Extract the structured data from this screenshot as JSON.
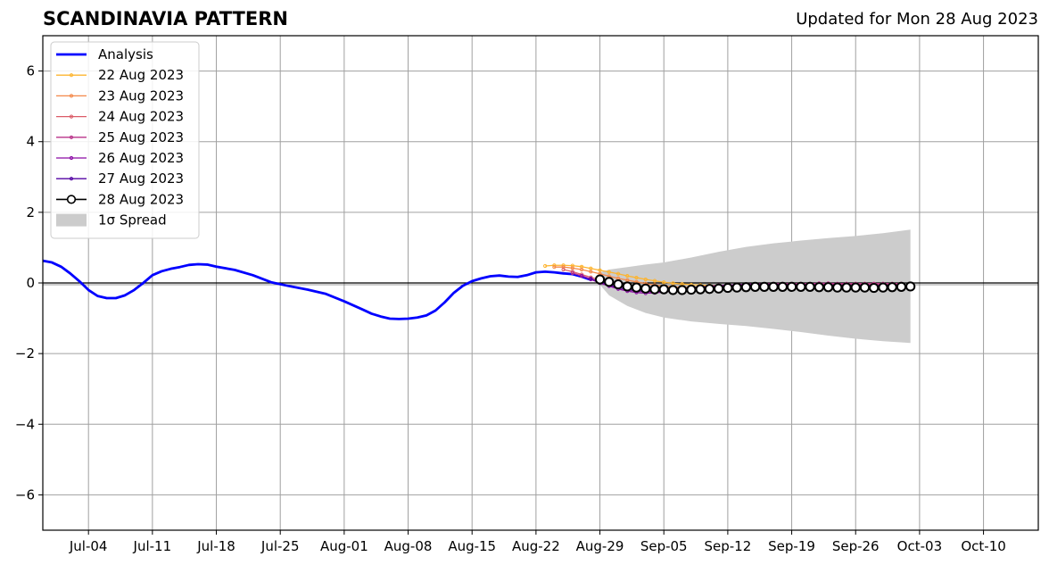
{
  "header": {
    "title": "SCANDINAVIA PATTERN",
    "updated": "Updated for Mon 28 Aug 2023"
  },
  "chart_data": {
    "type": "line",
    "title": "SCANDINAVIA PATTERN",
    "subtitle": "Updated for Mon 28 Aug 2023",
    "xlabel": "",
    "ylabel": "",
    "x_ticks": [
      "Jul-04",
      "Jul-11",
      "Jul-18",
      "Jul-25",
      "Aug-01",
      "Aug-08",
      "Aug-15",
      "Aug-22",
      "Aug-29",
      "Sep-05",
      "Sep-12",
      "Sep-19",
      "Sep-26",
      "Oct-03",
      "Oct-10"
    ],
    "y_ticks": [
      -6,
      -4,
      -2,
      0,
      2,
      4,
      6
    ],
    "y_tick_labels": [
      "−6",
      "−4",
      "−2",
      "0",
      "2",
      "4",
      "6"
    ],
    "xlim": [
      "2023-06-29",
      "2023-10-16"
    ],
    "ylim": [
      -7,
      7
    ],
    "grid": true,
    "legend_position": "top-left",
    "colors": {
      "analysis": "#0000ff",
      "spread": "#cccccc",
      "zero_line": "#000000"
    },
    "analysis": {
      "name": "Analysis",
      "dates": [
        "2023-06-29",
        "2023-06-30",
        "2023-07-01",
        "2023-07-02",
        "2023-07-03",
        "2023-07-04",
        "2023-07-05",
        "2023-07-06",
        "2023-07-07",
        "2023-07-08",
        "2023-07-09",
        "2023-07-10",
        "2023-07-11",
        "2023-07-12",
        "2023-07-13",
        "2023-07-14",
        "2023-07-15",
        "2023-07-16",
        "2023-07-17",
        "2023-07-18",
        "2023-07-20",
        "2023-07-22",
        "2023-07-24",
        "2023-07-26",
        "2023-07-28",
        "2023-07-30",
        "2023-08-01",
        "2023-08-03",
        "2023-08-04",
        "2023-08-05",
        "2023-08-06",
        "2023-08-07",
        "2023-08-08",
        "2023-08-09",
        "2023-08-10",
        "2023-08-11",
        "2023-08-12",
        "2023-08-13",
        "2023-08-14",
        "2023-08-15",
        "2023-08-16",
        "2023-08-17",
        "2023-08-18",
        "2023-08-19",
        "2023-08-20",
        "2023-08-21",
        "2023-08-22",
        "2023-08-23",
        "2023-08-24",
        "2023-08-25",
        "2023-08-26",
        "2023-08-27",
        "2023-08-28"
      ],
      "values": [
        0.63,
        0.58,
        0.46,
        0.27,
        0.05,
        -0.2,
        -0.37,
        -0.43,
        -0.43,
        -0.35,
        -0.2,
        0.0,
        0.22,
        0.33,
        0.4,
        0.45,
        0.51,
        0.53,
        0.52,
        0.46,
        0.37,
        0.22,
        0.02,
        -0.09,
        -0.19,
        -0.31,
        -0.52,
        -0.75,
        -0.87,
        -0.95,
        -1.01,
        -1.02,
        -1.01,
        -0.98,
        -0.92,
        -0.78,
        -0.55,
        -0.28,
        -0.08,
        0.05,
        0.13,
        0.19,
        0.21,
        0.18,
        0.17,
        0.22,
        0.3,
        0.32,
        0.3,
        0.27,
        0.25,
        0.18,
        0.09
      ]
    },
    "series": [
      {
        "name": "22 Aug 2023",
        "color": "#fdb42f",
        "start": "2023-08-23",
        "values": [
          0.48,
          0.5,
          0.5,
          0.49,
          0.46,
          0.41,
          0.36,
          0.31,
          0.26,
          0.2,
          0.15,
          0.1,
          0.06,
          0.02,
          -0.01,
          -0.03,
          -0.05,
          -0.06,
          -0.07,
          -0.08,
          -0.08,
          -0.08,
          -0.08,
          -0.07,
          -0.07,
          -0.06,
          -0.06,
          -0.05,
          -0.05,
          -0.05,
          -0.05,
          -0.05,
          -0.05,
          -0.05,
          -0.04,
          -0.04,
          -0.04,
          -0.04,
          -0.04,
          -0.04
        ]
      },
      {
        "name": "23 Aug 2023",
        "color": "#f48849",
        "start": "2023-08-24",
        "values": [
          0.45,
          0.45,
          0.42,
          0.38,
          0.32,
          0.26,
          0.19,
          0.13,
          0.08,
          0.03,
          -0.02,
          -0.06,
          -0.09,
          -0.11,
          -0.12,
          -0.12,
          -0.12,
          -0.11,
          -0.1,
          -0.09,
          -0.08,
          -0.07,
          -0.06,
          -0.05,
          -0.05,
          -0.04,
          -0.04,
          -0.04,
          -0.03,
          -0.03,
          -0.03,
          -0.03,
          -0.03,
          -0.03,
          -0.03,
          -0.03,
          -0.03,
          -0.03,
          -0.03
        ]
      },
      {
        "name": "24 Aug 2023",
        "color": "#db5c68",
        "start": "2023-08-25",
        "values": [
          0.38,
          0.32,
          0.24,
          0.16,
          0.08,
          0.01,
          -0.06,
          -0.12,
          -0.16,
          -0.18,
          -0.19,
          -0.19,
          -0.18,
          -0.16,
          -0.14,
          -0.12,
          -0.1,
          -0.09,
          -0.08,
          -0.07,
          -0.06,
          -0.05,
          -0.05,
          -0.04,
          -0.04,
          -0.04,
          -0.03,
          -0.03,
          -0.03,
          -0.03,
          -0.03,
          -0.02,
          -0.02,
          -0.02,
          -0.02,
          -0.02,
          -0.02,
          -0.02
        ]
      },
      {
        "name": "25 Aug 2023",
        "color": "#b83289",
        "start": "2023-08-26",
        "values": [
          0.28,
          0.2,
          0.11,
          0.02,
          -0.06,
          -0.13,
          -0.19,
          -0.23,
          -0.25,
          -0.25,
          -0.23,
          -0.2,
          -0.17,
          -0.14,
          -0.11,
          -0.09,
          -0.07,
          -0.06,
          -0.05,
          -0.04,
          -0.03,
          -0.03,
          -0.02,
          -0.02,
          -0.02,
          -0.02,
          -0.02,
          -0.01,
          -0.01,
          -0.02,
          -0.02,
          -0.02,
          -0.02,
          -0.02,
          -0.02,
          -0.02,
          -0.02
        ]
      },
      {
        "name": "26 Aug 2023",
        "color": "#8b0aa5",
        "start": "2023-08-27",
        "values": [
          0.2,
          0.1,
          0.0,
          -0.09,
          -0.17,
          -0.23,
          -0.27,
          -0.29,
          -0.28,
          -0.26,
          -0.22,
          -0.18,
          -0.15,
          -0.12,
          -0.1,
          -0.08,
          -0.06,
          -0.05,
          -0.04,
          -0.04,
          -0.04,
          -0.04,
          -0.04,
          -0.05,
          -0.05,
          -0.05,
          -0.05,
          -0.05,
          -0.06,
          -0.06,
          -0.06,
          -0.06,
          -0.06,
          -0.06,
          -0.06,
          -0.06
        ]
      },
      {
        "name": "27 Aug 2023",
        "color": "#5302a3",
        "start": "2023-08-28",
        "values": [
          0.12,
          0.03,
          -0.06,
          -0.13,
          -0.19,
          -0.22,
          -0.24,
          -0.24,
          -0.23,
          -0.21,
          -0.19,
          -0.17,
          -0.15,
          -0.14,
          -0.13,
          -0.12,
          -0.12,
          -0.11,
          -0.11,
          -0.11,
          -0.11,
          -0.11,
          -0.11,
          -0.11,
          -0.11,
          -0.11,
          -0.11,
          -0.11,
          -0.11,
          -0.11,
          -0.11,
          -0.11,
          -0.11,
          -0.11,
          -0.11
        ]
      },
      {
        "name": "28 Aug 2023",
        "color": "#000000",
        "start": "2023-08-29",
        "values": [
          0.1,
          0.03,
          -0.04,
          -0.1,
          -0.13,
          -0.16,
          -0.18,
          -0.18,
          -0.2,
          -0.2,
          -0.19,
          -0.18,
          -0.17,
          -0.16,
          -0.14,
          -0.13,
          -0.12,
          -0.11,
          -0.11,
          -0.11,
          -0.11,
          -0.11,
          -0.11,
          -0.11,
          -0.12,
          -0.12,
          -0.13,
          -0.13,
          -0.13,
          -0.13,
          -0.14,
          -0.13,
          -0.12,
          -0.11,
          -0.1
        ]
      }
    ],
    "spread": {
      "name": "1σ Spread",
      "dates": [
        "2023-08-29",
        "2023-08-30",
        "2023-09-01",
        "2023-09-03",
        "2023-09-05",
        "2023-09-08",
        "2023-09-11",
        "2023-09-14",
        "2023-09-17",
        "2023-09-20",
        "2023-09-23",
        "2023-09-26",
        "2023-09-29",
        "2023-10-02"
      ],
      "upper": [
        0.3,
        0.38,
        0.45,
        0.52,
        0.58,
        0.72,
        0.88,
        1.02,
        1.12,
        1.2,
        1.27,
        1.33,
        1.41,
        1.51
      ],
      "lower": [
        -0.05,
        -0.35,
        -0.65,
        -0.85,
        -0.98,
        -1.09,
        -1.16,
        -1.22,
        -1.3,
        -1.39,
        -1.49,
        -1.58,
        -1.65,
        -1.7
      ]
    }
  }
}
